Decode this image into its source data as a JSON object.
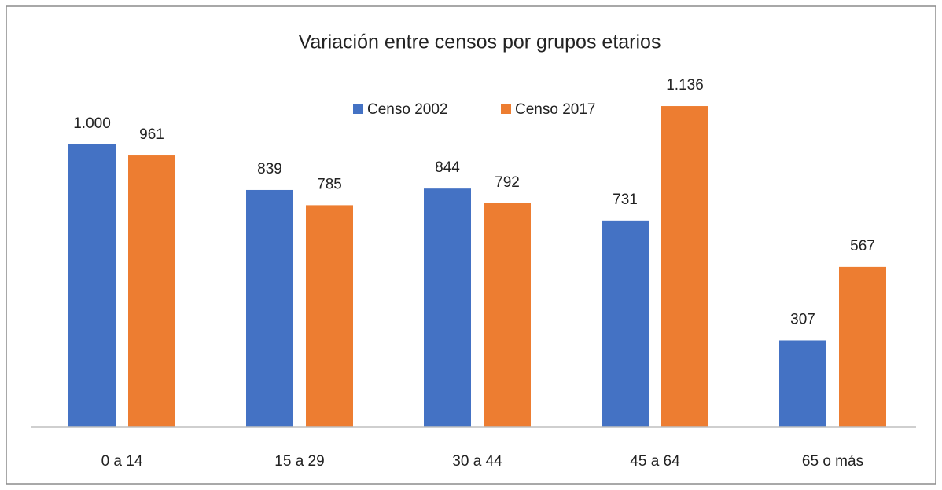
{
  "chart_data": {
    "type": "bar",
    "title": "Variación entre censos por grupos etarios",
    "categories": [
      "0 a 14",
      "15 a 29",
      "30 a 44",
      "45 a 64",
      "65 o más"
    ],
    "series": [
      {
        "name": "Censo 2002",
        "color": "#4472c4",
        "values": [
          1000,
          839,
          844,
          731,
          307
        ],
        "value_labels": [
          "1.000",
          "839",
          "844",
          "731",
          "307"
        ]
      },
      {
        "name": "Censo 2017",
        "color": "#ed7d31",
        "values": [
          961,
          785,
          792,
          1136,
          567
        ],
        "value_labels": [
          "961",
          "785",
          "792",
          "1.136",
          "567"
        ]
      }
    ],
    "ylim": [
      0,
      1200
    ],
    "legend": "top"
  }
}
